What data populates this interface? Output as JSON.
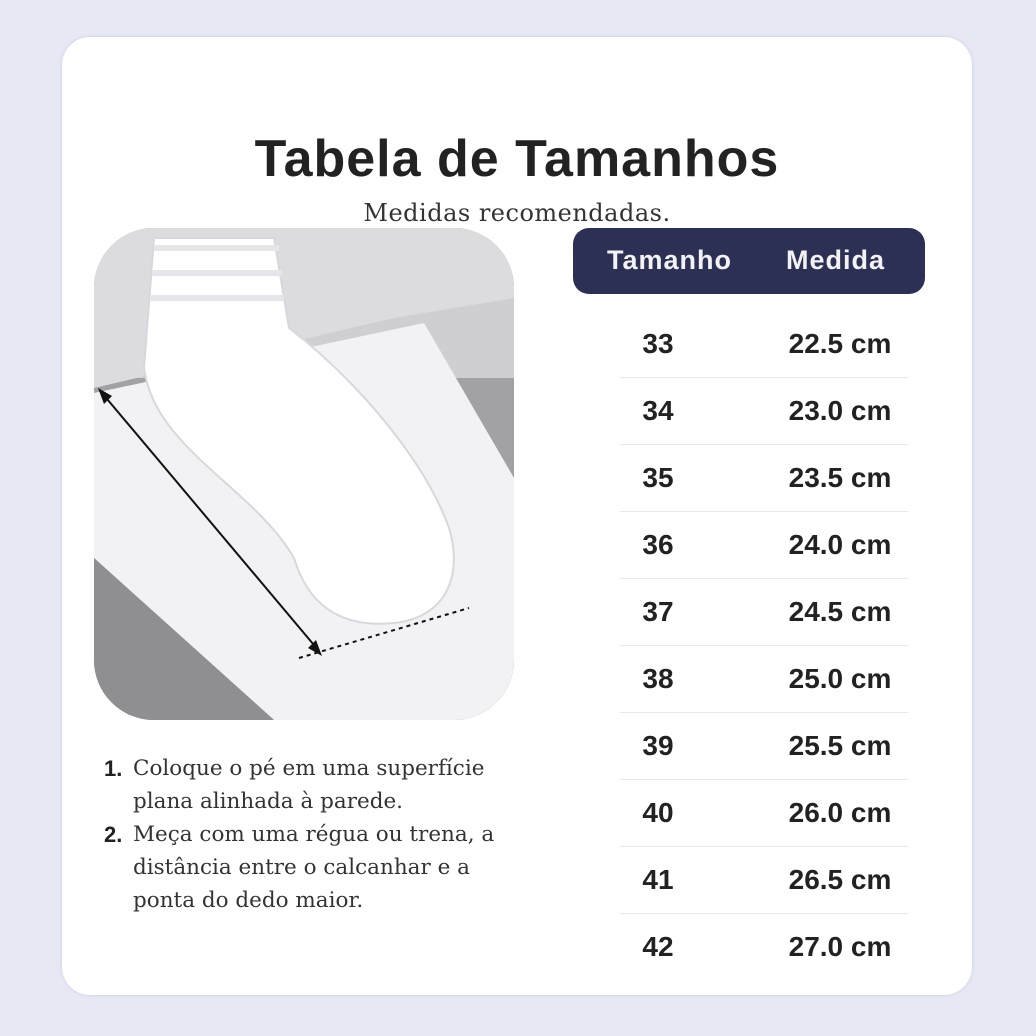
{
  "title": "Tabela de Tamanhos",
  "subtitle": "Medidas recomendadas.",
  "colors": {
    "background": "#e6e9f4",
    "card": "#ffffff",
    "table_header": "#2d3055",
    "text": "#222222"
  },
  "image": {
    "icon": "foot-measurement-photo"
  },
  "table": {
    "headers": [
      "Tamanho",
      "Medida"
    ],
    "rows": [
      {
        "size": "33",
        "measure": "22.5 cm"
      },
      {
        "size": "34",
        "measure": "23.0 cm"
      },
      {
        "size": "35",
        "measure": "23.5 cm"
      },
      {
        "size": "36",
        "measure": "24.0 cm"
      },
      {
        "size": "37",
        "measure": "24.5 cm"
      },
      {
        "size": "38",
        "measure": "25.0 cm"
      },
      {
        "size": "39",
        "measure": "25.5 cm"
      },
      {
        "size": "40",
        "measure": "26.0 cm"
      },
      {
        "size": "41",
        "measure": "26.5 cm"
      },
      {
        "size": "42",
        "measure": "27.0 cm"
      }
    ]
  },
  "instructions": [
    {
      "number": "1.",
      "text": "Coloque o pé em uma superfície  plana alinhada à parede."
    },
    {
      "number": "2.",
      "text": "Meça com uma régua ou trena, a distância entre o calcanhar e a ponta do dedo maior."
    }
  ]
}
